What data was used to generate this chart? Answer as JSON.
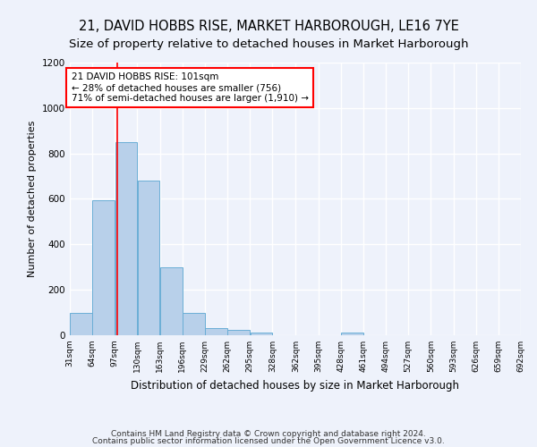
{
  "title": "21, DAVID HOBBS RISE, MARKET HARBOROUGH, LE16 7YE",
  "subtitle": "Size of property relative to detached houses in Market Harborough",
  "xlabel": "Distribution of detached houses by size in Market Harborough",
  "ylabel": "Number of detached properties",
  "footer_line1": "Contains HM Land Registry data © Crown copyright and database right 2024.",
  "footer_line2": "Contains public sector information licensed under the Open Government Licence v3.0.",
  "bin_edges": [
    31,
    64,
    97,
    130,
    163,
    196,
    229,
    262,
    295,
    328,
    362,
    395,
    428,
    461,
    494,
    527,
    560,
    593,
    626,
    659,
    692
  ],
  "bar_heights": [
    100,
    595,
    850,
    680,
    300,
    100,
    30,
    22,
    10,
    0,
    0,
    0,
    12,
    0,
    0,
    0,
    0,
    0,
    0,
    0
  ],
  "bar_color": "#b8d0ea",
  "bar_edgecolor": "#6aaed6",
  "annotation_text": "21 DAVID HOBBS RISE: 101sqm\n← 28% of detached houses are smaller (756)\n71% of semi-detached houses are larger (1,910) →",
  "annotation_box_color": "white",
  "annotation_box_edgecolor": "red",
  "property_line_x": 101,
  "property_line_color": "red",
  "ylim": [
    0,
    1200
  ],
  "yticks": [
    0,
    200,
    400,
    600,
    800,
    1000,
    1200
  ],
  "background_color": "#eef2fb",
  "axes_background": "#eef2fb",
  "grid_color": "white",
  "title_fontsize": 10.5,
  "subtitle_fontsize": 9.5,
  "xlabel_fontsize": 8.5,
  "ylabel_fontsize": 8,
  "footer_fontsize": 6.5
}
